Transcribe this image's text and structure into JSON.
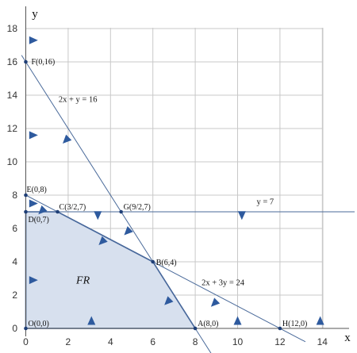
{
  "chart_data": {
    "type": "line",
    "xlabel": "x",
    "ylabel": "y",
    "xlim": [
      0,
      15
    ],
    "ylim": [
      0,
      19
    ],
    "x_ticks": [
      "0",
      "2",
      "4",
      "6",
      "8",
      "10",
      "12",
      "14"
    ],
    "y_ticks": [
      "0",
      "2",
      "4",
      "6",
      "8",
      "10",
      "12",
      "14",
      "16",
      "18"
    ],
    "grid": true,
    "colors": {
      "grid": "#c8c8c8",
      "constraint_line": "#4a6a9a",
      "region_fill": "#d7e0ee",
      "region_edge": "#3d5f99",
      "arrow": "#2e5a9e",
      "point": "#1f3f77"
    },
    "constraints": [
      {
        "label": "2x + y = 16",
        "x": [
          0,
          8
        ],
        "y": [
          16,
          0
        ]
      },
      {
        "label": "2x + 3y = 24",
        "x": [
          0,
          12
        ],
        "y": [
          8,
          0
        ]
      },
      {
        "label": "y = 7",
        "x": [
          0,
          15
        ],
        "y": [
          7,
          7
        ]
      }
    ],
    "points": [
      {
        "label": "F(0,16)",
        "x": 0,
        "y": 16
      },
      {
        "label": "G(9/2,7)",
        "x": 4.5,
        "y": 7
      },
      {
        "label": "E(0,8)",
        "x": 0,
        "y": 8
      },
      {
        "label": "C(3/2,7)",
        "x": 1.5,
        "y": 7
      },
      {
        "label": "D(0,7)",
        "x": 0,
        "y": 7
      },
      {
        "label": "B(6,4)",
        "x": 6,
        "y": 4
      },
      {
        "label": "O(0,0)",
        "x": 0,
        "y": 0
      },
      {
        "label": "A(8,0)",
        "x": 8,
        "y": 0
      },
      {
        "label": "H(12,0)",
        "x": 12,
        "y": 0
      }
    ],
    "feasible_region": {
      "label": "FR",
      "x": [
        0,
        0,
        1.5,
        6,
        8
      ],
      "y": [
        0,
        7,
        7,
        4,
        0
      ]
    },
    "direction_arrows": [
      {
        "x": 0.35,
        "y": 17.3,
        "dir": "right"
      },
      {
        "x": 0.35,
        "y": 11.6,
        "dir": "right"
      },
      {
        "x": 1.9,
        "y": 11.3,
        "dir": "down-left"
      },
      {
        "x": 0.35,
        "y": 7.5,
        "dir": "right"
      },
      {
        "x": 0.75,
        "y": 7.05,
        "dir": "down-left"
      },
      {
        "x": 3.4,
        "y": 6.8,
        "dir": "down"
      },
      {
        "x": 10.2,
        "y": 6.8,
        "dir": "down"
      },
      {
        "x": 4.8,
        "y": 5.8,
        "dir": "down-left"
      },
      {
        "x": 3.6,
        "y": 5.2,
        "dir": "down-left"
      },
      {
        "x": 0.35,
        "y": 2.9,
        "dir": "right"
      },
      {
        "x": 6.7,
        "y": 1.6,
        "dir": "down-left"
      },
      {
        "x": 8.9,
        "y": 1.5,
        "dir": "down-left"
      },
      {
        "x": 3.1,
        "y": 0.45,
        "dir": "up"
      },
      {
        "x": 10.0,
        "y": 0.45,
        "dir": "up"
      },
      {
        "x": 13.9,
        "y": 0.45,
        "dir": "up"
      }
    ]
  }
}
